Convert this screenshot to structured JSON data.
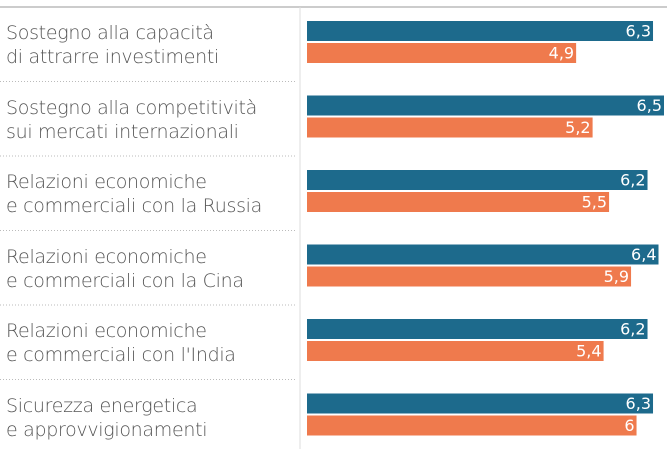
{
  "chart_data": {
    "type": "bar",
    "orientation": "horizontal",
    "categories": [
      "Sostegno alla capacità\ndi attrarre investimenti",
      "Sostegno alla competitività\nsui mercati internazionali",
      "Relazioni economiche\ne commerciali con la Russia",
      "Relazioni economiche\ne commerciali con la Cina",
      "Relazioni economiche\ne commerciali con l'India",
      "Sicurezza energetica\ne approvvigionamenti"
    ],
    "series": [
      {
        "color": "#1d6a8c",
        "values": [
          6.3,
          6.5,
          6.2,
          6.4,
          6.2,
          6.3
        ],
        "value_labels": [
          "6,3",
          "6,5",
          "6,2",
          "6,4",
          "6,2",
          "6,3"
        ]
      },
      {
        "color": "#ef7a4d",
        "values": [
          4.9,
          5.2,
          5.5,
          5.9,
          5.4,
          6
        ],
        "value_labels": [
          "4,9",
          "5,2",
          "5,5",
          "5,9",
          "5,4",
          "6"
        ]
      }
    ],
    "xlim": [
      0,
      6.5
    ]
  }
}
